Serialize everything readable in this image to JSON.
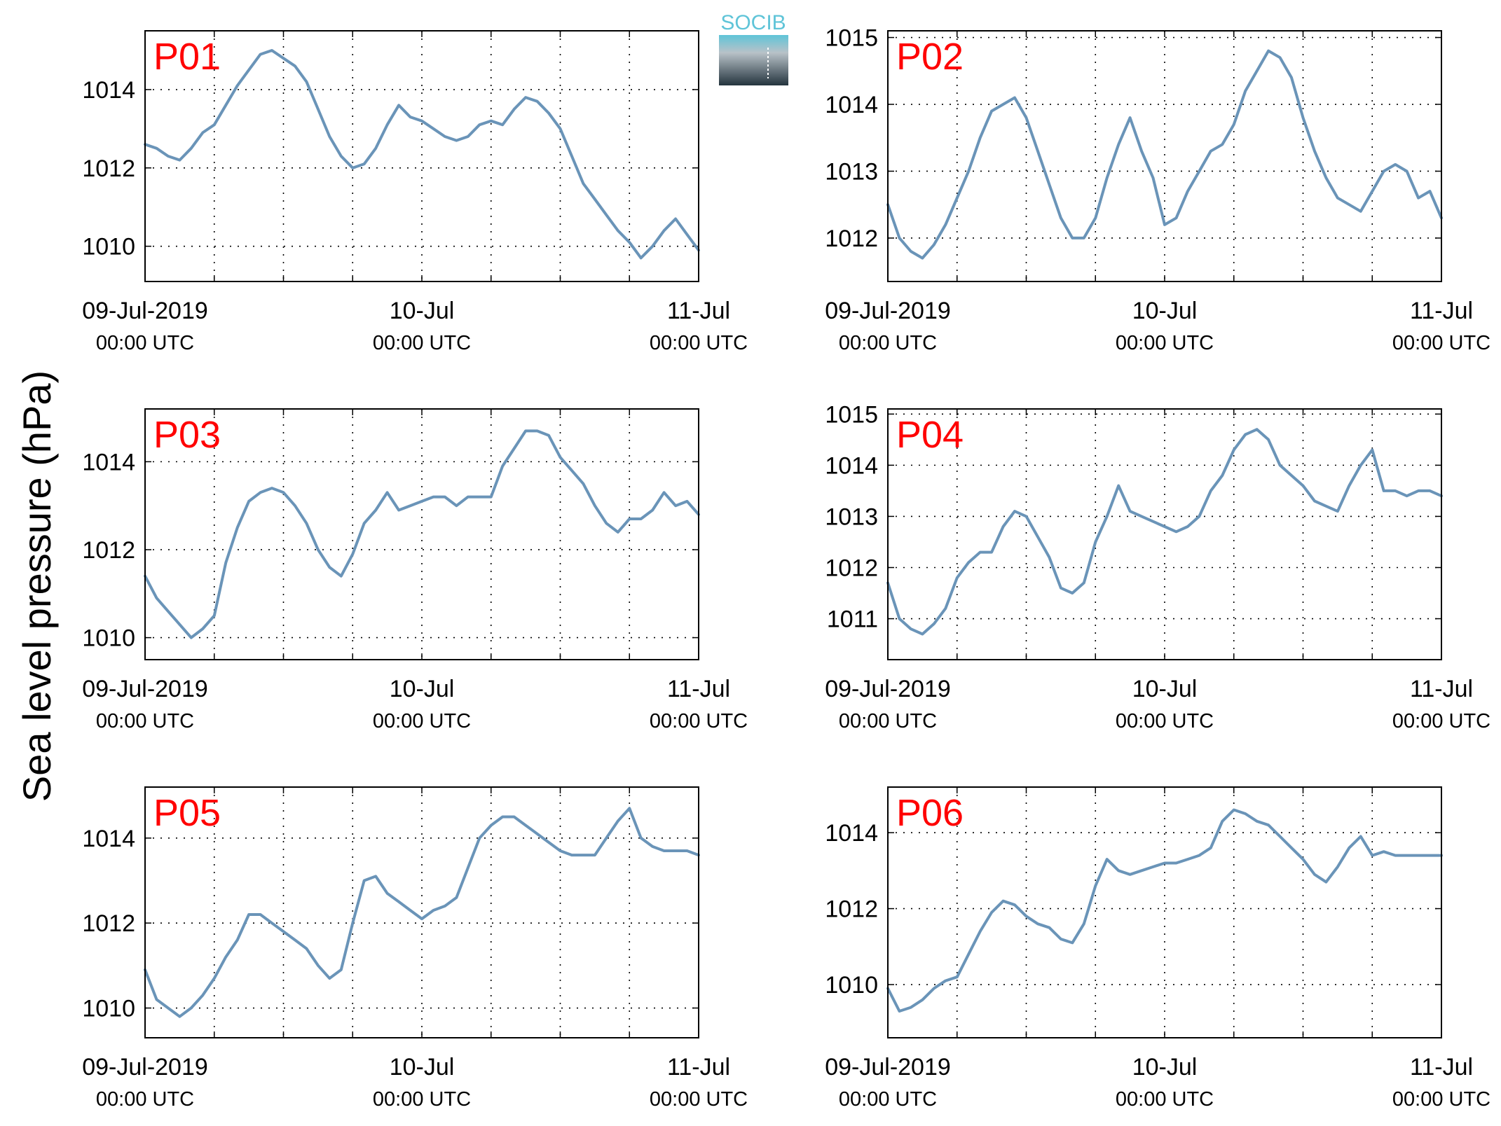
{
  "figure": {
    "ylabel": "Sea level pressure (hPa)",
    "logo_text": "SOCIB",
    "line_color": "#6a94b8",
    "label_color": "#ff0000"
  },
  "x_ticks": [
    {
      "date": "09-Jul-2019",
      "time": "00:00 UTC"
    },
    {
      "date": "10-Jul",
      "time": "00:00 UTC"
    },
    {
      "date": "11-Jul",
      "time": "00:00 UTC"
    }
  ],
  "chart_data": [
    {
      "type": "line",
      "label": "P01",
      "xlim": [
        "2019-07-09 00:00",
        "2019-07-11 00:00"
      ],
      "ylim": [
        1009.1,
        1015.5
      ],
      "yticks": [
        1010,
        1012,
        1014
      ],
      "grid": true,
      "x_hours": [
        0,
        1,
        2,
        3,
        4,
        5,
        6,
        7,
        8,
        9,
        10,
        11,
        12,
        13,
        14,
        15,
        16,
        17,
        18,
        19,
        20,
        21,
        22,
        23,
        24,
        25,
        26,
        27,
        28,
        29,
        30,
        31,
        32,
        33,
        34,
        35,
        36,
        37,
        38,
        39,
        40,
        41,
        42,
        43,
        44,
        45,
        46,
        47,
        48
      ],
      "values": [
        1012.6,
        1012.5,
        1012.3,
        1012.2,
        1012.5,
        1012.9,
        1013.1,
        1013.6,
        1014.1,
        1014.5,
        1014.9,
        1015.0,
        1014.8,
        1014.6,
        1014.2,
        1013.5,
        1012.8,
        1012.3,
        1012.0,
        1012.1,
        1012.5,
        1013.1,
        1013.6,
        1013.3,
        1013.2,
        1013.0,
        1012.8,
        1012.7,
        1012.8,
        1013.1,
        1013.2,
        1013.1,
        1013.5,
        1013.8,
        1013.7,
        1013.4,
        1013.0,
        1012.3,
        1011.6,
        1011.2,
        1010.8,
        1010.4,
        1010.1,
        1009.7,
        1010.0,
        1010.4,
        1010.7,
        1010.3,
        1009.9
      ]
    },
    {
      "type": "line",
      "label": "P02",
      "xlim": [
        "2019-07-09 00:00",
        "2019-07-11 00:00"
      ],
      "ylim": [
        1011.35,
        1015.1
      ],
      "yticks": [
        1012,
        1013,
        1014,
        1015
      ],
      "grid": true,
      "x_hours": [
        0,
        1,
        2,
        3,
        4,
        5,
        6,
        7,
        8,
        9,
        10,
        11,
        12,
        13,
        14,
        15,
        16,
        17,
        18,
        19,
        20,
        21,
        22,
        23,
        24,
        25,
        26,
        27,
        28,
        29,
        30,
        31,
        32,
        33,
        34,
        35,
        36,
        37,
        38,
        39,
        40,
        41,
        42,
        43,
        44,
        45,
        46,
        47,
        48
      ],
      "values": [
        1012.5,
        1012.0,
        1011.8,
        1011.7,
        1011.9,
        1012.2,
        1012.6,
        1013.0,
        1013.5,
        1013.9,
        1014.0,
        1014.1,
        1013.8,
        1013.3,
        1012.8,
        1012.3,
        1012.0,
        1012.0,
        1012.3,
        1012.9,
        1013.4,
        1013.8,
        1013.3,
        1012.9,
        1012.2,
        1012.3,
        1012.7,
        1013.0,
        1013.3,
        1013.4,
        1013.7,
        1014.2,
        1014.5,
        1014.8,
        1014.7,
        1014.4,
        1013.8,
        1013.3,
        1012.9,
        1012.6,
        1012.5,
        1012.4,
        1012.7,
        1013.0,
        1013.1,
        1013.0,
        1012.6,
        1012.7,
        1012.3
      ]
    },
    {
      "type": "line",
      "label": "P03",
      "xlim": [
        "2019-07-09 00:00",
        "2019-07-11 00:00"
      ],
      "ylim": [
        1009.5,
        1015.2
      ],
      "yticks": [
        1010,
        1012,
        1014
      ],
      "grid": true,
      "x_hours": [
        0,
        1,
        2,
        3,
        4,
        5,
        6,
        7,
        8,
        9,
        10,
        11,
        12,
        13,
        14,
        15,
        16,
        17,
        18,
        19,
        20,
        21,
        22,
        23,
        24,
        25,
        26,
        27,
        28,
        29,
        30,
        31,
        32,
        33,
        34,
        35,
        36,
        37,
        38,
        39,
        40,
        41,
        42,
        43,
        44,
        45,
        46,
        47,
        48
      ],
      "values": [
        1011.4,
        1010.9,
        1010.6,
        1010.3,
        1010.0,
        1010.2,
        1010.5,
        1011.7,
        1012.5,
        1013.1,
        1013.3,
        1013.4,
        1013.3,
        1013.0,
        1012.6,
        1012.0,
        1011.6,
        1011.4,
        1011.9,
        1012.6,
        1012.9,
        1013.3,
        1012.9,
        1013.0,
        1013.1,
        1013.2,
        1013.2,
        1013.0,
        1013.2,
        1013.2,
        1013.2,
        1013.9,
        1014.3,
        1014.7,
        1014.7,
        1014.6,
        1014.1,
        1013.8,
        1013.5,
        1013.0,
        1012.6,
        1012.4,
        1012.7,
        1012.7,
        1012.9,
        1013.3,
        1013.0,
        1013.1,
        1012.8
      ]
    },
    {
      "type": "line",
      "label": "P04",
      "xlim": [
        "2019-07-09 00:00",
        "2019-07-11 00:00"
      ],
      "ylim": [
        1010.2,
        1015.1
      ],
      "yticks": [
        1011,
        1012,
        1013,
        1014,
        1015
      ],
      "grid": true,
      "x_hours": [
        0,
        1,
        2,
        3,
        4,
        5,
        6,
        7,
        8,
        9,
        10,
        11,
        12,
        13,
        14,
        15,
        16,
        17,
        18,
        19,
        20,
        21,
        22,
        23,
        24,
        25,
        26,
        27,
        28,
        29,
        30,
        31,
        32,
        33,
        34,
        35,
        36,
        37,
        38,
        39,
        40,
        41,
        42,
        43,
        44,
        45,
        46,
        47,
        48
      ],
      "values": [
        1011.7,
        1011.0,
        1010.8,
        1010.7,
        1010.9,
        1011.2,
        1011.8,
        1012.1,
        1012.3,
        1012.3,
        1012.8,
        1013.1,
        1013.0,
        1012.6,
        1012.2,
        1011.6,
        1011.5,
        1011.7,
        1012.5,
        1013.0,
        1013.6,
        1013.1,
        1013.0,
        1012.9,
        1012.8,
        1012.7,
        1012.8,
        1013.0,
        1013.5,
        1013.8,
        1014.3,
        1014.6,
        1014.7,
        1014.5,
        1014.0,
        1013.8,
        1013.6,
        1013.3,
        1013.2,
        1013.1,
        1013.6,
        1014.0,
        1014.3,
        1013.5,
        1013.5,
        1013.4,
        1013.5,
        1013.5,
        1013.4
      ]
    },
    {
      "type": "line",
      "label": "P05",
      "xlim": [
        "2019-07-09 00:00",
        "2019-07-11 00:00"
      ],
      "ylim": [
        1009.3,
        1015.2
      ],
      "yticks": [
        1010,
        1012,
        1014
      ],
      "grid": true,
      "x_hours": [
        0,
        1,
        2,
        3,
        4,
        5,
        6,
        7,
        8,
        9,
        10,
        11,
        12,
        13,
        14,
        15,
        16,
        17,
        18,
        19,
        20,
        21,
        22,
        23,
        24,
        25,
        26,
        27,
        28,
        29,
        30,
        31,
        32,
        33,
        34,
        35,
        36,
        37,
        38,
        39,
        40,
        41,
        42,
        43,
        44,
        45,
        46,
        47,
        48
      ],
      "values": [
        1010.9,
        1010.2,
        1010.0,
        1009.8,
        1010.0,
        1010.3,
        1010.7,
        1011.2,
        1011.6,
        1012.2,
        1012.2,
        1012.0,
        1011.8,
        1011.6,
        1011.4,
        1011.0,
        1010.7,
        1010.9,
        1012.0,
        1013.0,
        1013.1,
        1012.7,
        1012.5,
        1012.3,
        1012.1,
        1012.3,
        1012.4,
        1012.6,
        1013.3,
        1014.0,
        1014.3,
        1014.5,
        1014.5,
        1014.3,
        1014.1,
        1013.9,
        1013.7,
        1013.6,
        1013.6,
        1013.6,
        1014.0,
        1014.4,
        1014.7,
        1014.0,
        1013.8,
        1013.7,
        1013.7,
        1013.7,
        1013.6
      ]
    },
    {
      "type": "line",
      "label": "P06",
      "xlim": [
        "2019-07-09 00:00",
        "2019-07-11 00:00"
      ],
      "ylim": [
        1008.6,
        1015.2
      ],
      "yticks": [
        1010,
        1012,
        1014
      ],
      "grid": true,
      "x_hours": [
        0,
        1,
        2,
        3,
        4,
        5,
        6,
        7,
        8,
        9,
        10,
        11,
        12,
        13,
        14,
        15,
        16,
        17,
        18,
        19,
        20,
        21,
        22,
        23,
        24,
        25,
        26,
        27,
        28,
        29,
        30,
        31,
        32,
        33,
        34,
        35,
        36,
        37,
        38,
        39,
        40,
        41,
        42,
        43,
        44,
        45,
        46,
        47,
        48
      ],
      "values": [
        1009.9,
        1009.3,
        1009.4,
        1009.6,
        1009.9,
        1010.1,
        1010.2,
        1010.8,
        1011.4,
        1011.9,
        1012.2,
        1012.1,
        1011.8,
        1011.6,
        1011.5,
        1011.2,
        1011.1,
        1011.6,
        1012.6,
        1013.3,
        1013.0,
        1012.9,
        1013.0,
        1013.1,
        1013.2,
        1013.2,
        1013.3,
        1013.4,
        1013.6,
        1014.3,
        1014.6,
        1014.5,
        1014.3,
        1014.2,
        1013.9,
        1013.6,
        1013.3,
        1012.9,
        1012.7,
        1013.1,
        1013.6,
        1013.9,
        1013.4,
        1013.5,
        1013.4,
        1013.4,
        1013.4,
        1013.4,
        1013.4
      ]
    }
  ]
}
